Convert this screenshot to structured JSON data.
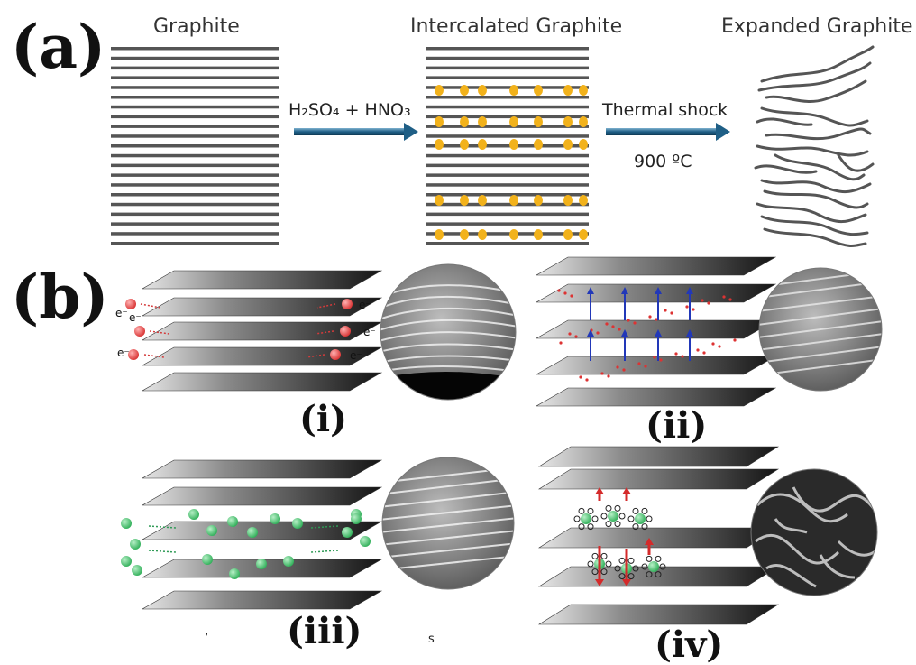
{
  "panel_a": {
    "letter": "(a)",
    "graphite_label": "Graphite",
    "intercalated_label": "Intercalated Graphite",
    "expanded_label": "Expanded Graphite",
    "reagent_h2so4": "H₂SO₄ + HNO₃",
    "process_label": "Thermal shock",
    "temperature_label": "900 ºC"
  },
  "panel_b": {
    "letter": "(b)",
    "sub_i": "(i)",
    "sub_ii": "(ii)",
    "sub_iii": "(iii)",
    "sub_iv": "(iv)",
    "electron_label": "e⁻",
    "stray_mark_1": "’",
    "stray_mark_2": "s"
  },
  "colors": {
    "layer_line": "#555555",
    "intercalant": "#f2b21b",
    "arrow": "#1f5f86",
    "ion_red": "#e84a4a",
    "ion_green": "#3fc06a",
    "blue_arrow": "#2238b8",
    "red_arrow": "#d42a2a",
    "sheet_dark": "#1b1b1b"
  }
}
